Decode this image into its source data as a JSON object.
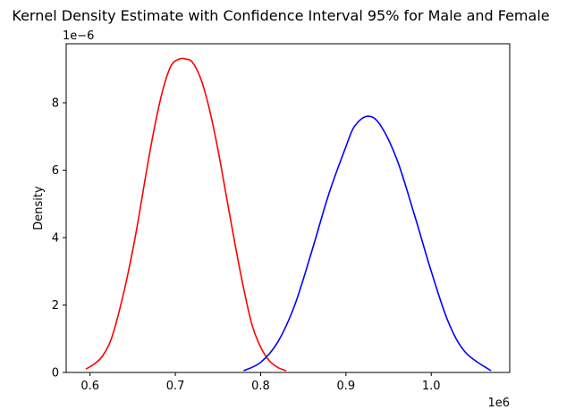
{
  "chart_data": {
    "type": "line",
    "title": "Kernel Density Estimate with Confidence Interval 95% for Male and Female",
    "xlabel": "",
    "ylabel": "Density",
    "x_offset_text": "1e6",
    "y_offset_text": "1e−6",
    "xlim": [
      0.572,
      1.092
    ],
    "ylim": [
      0,
      9.75
    ],
    "xticks": [
      0.6,
      0.7,
      0.8,
      0.9,
      1.0
    ],
    "xtick_labels": [
      "0.6",
      "0.7",
      "0.8",
      "0.9",
      "1.0"
    ],
    "yticks": [
      0,
      2,
      4,
      6,
      8
    ],
    "ytick_labels": [
      "0",
      "2",
      "4",
      "6",
      "8"
    ],
    "grid": false,
    "legend": "none",
    "series": [
      {
        "color": "#ff0000",
        "x": [
          0.595,
          0.605,
          0.615,
          0.625,
          0.635,
          0.645,
          0.655,
          0.665,
          0.675,
          0.685,
          0.695,
          0.705,
          0.712,
          0.72,
          0.73,
          0.74,
          0.75,
          0.76,
          0.77,
          0.78,
          0.79,
          0.8,
          0.81,
          0.82,
          0.83
        ],
        "y": [
          0.1,
          0.25,
          0.5,
          1.0,
          1.9,
          3.0,
          4.3,
          5.8,
          7.2,
          8.35,
          9.1,
          9.3,
          9.3,
          9.2,
          8.7,
          7.8,
          6.6,
          5.2,
          3.8,
          2.5,
          1.4,
          0.75,
          0.35,
          0.15,
          0.05
        ]
      },
      {
        "color": "#0000ff",
        "x": [
          0.78,
          0.8,
          0.82,
          0.84,
          0.86,
          0.88,
          0.9,
          0.91,
          0.925,
          0.94,
          0.96,
          0.98,
          1.0,
          1.02,
          1.04,
          1.07
        ],
        "y": [
          0.05,
          0.3,
          0.9,
          2.0,
          3.6,
          5.3,
          6.7,
          7.3,
          7.6,
          7.35,
          6.3,
          4.7,
          3.0,
          1.5,
          0.6,
          0.05
        ]
      }
    ]
  }
}
